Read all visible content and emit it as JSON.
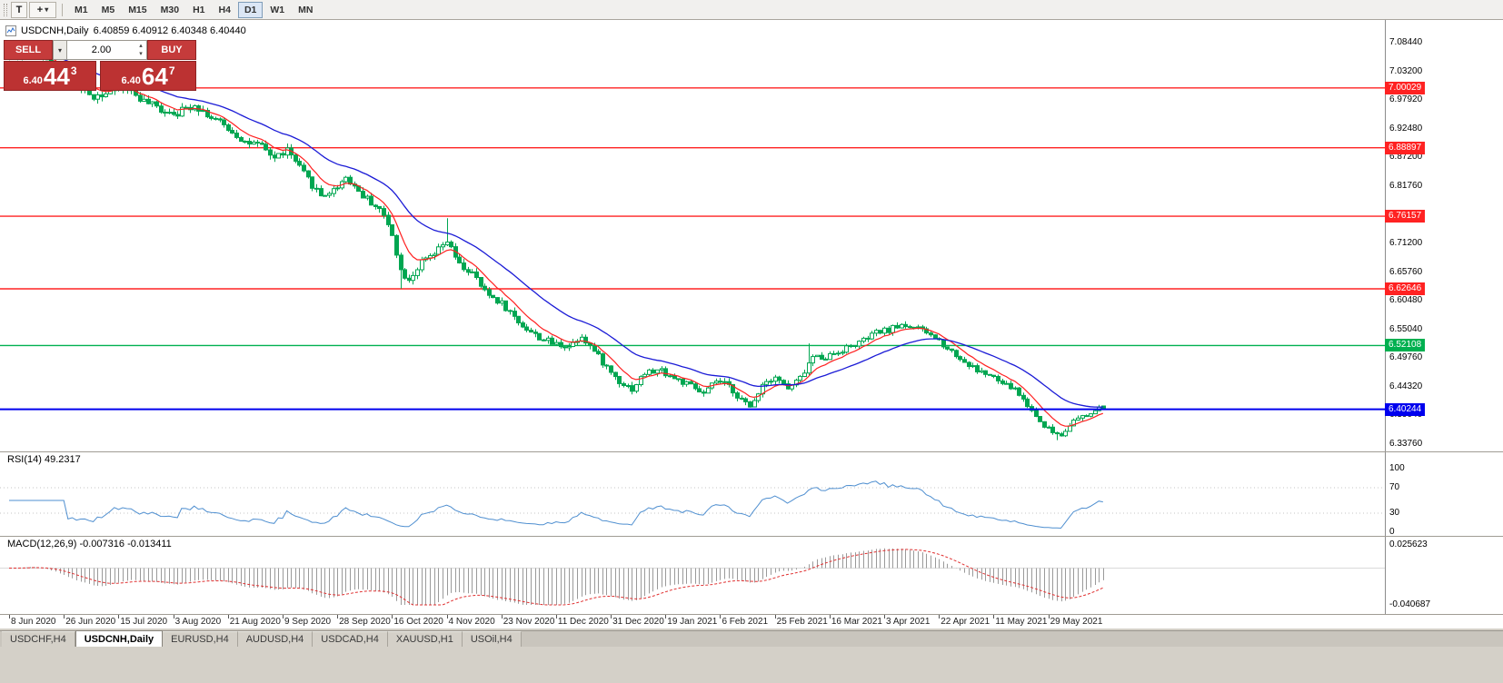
{
  "toolbar": {
    "grip_label": "T",
    "cursor_tool_glyph": "+",
    "timeframes": [
      "M1",
      "M5",
      "M15",
      "M30",
      "H1",
      "H4",
      "D1",
      "W1",
      "MN"
    ],
    "active_timeframe": "D1"
  },
  "chart_header": {
    "symbol": "USDCNH,Daily",
    "ohlc": "6.40859 6.40912 6.40348 6.40440"
  },
  "trade_panel": {
    "sell_label": "SELL",
    "buy_label": "BUY",
    "volume": "2.00",
    "sell_price_prefix": "6.40",
    "sell_price_big": "44",
    "sell_price_sup": "3",
    "buy_price_prefix": "6.40",
    "buy_price_big": "64",
    "buy_price_sup": "7"
  },
  "price_axis_labels": [
    "7.08440",
    "7.03200",
    "6.97920",
    "6.92480",
    "6.87200",
    "6.81760",
    "6.76480",
    "6.71200",
    "6.65760",
    "6.60480",
    "6.55040",
    "6.49760",
    "6.44320",
    "6.39040",
    "6.33760"
  ],
  "hlines": [
    {
      "label": "7.00029",
      "price": 7.00029,
      "color": "#ff2222",
      "width": 1.4
    },
    {
      "label": "6.88897",
      "price": 6.88897,
      "color": "#ff2222",
      "width": 1.4
    },
    {
      "label": "6.76157",
      "price": 6.76157,
      "color": "#ff2222",
      "width": 1.4
    },
    {
      "label": "6.62646",
      "price": 6.62646,
      "color": "#ff2222",
      "width": 1.4
    },
    {
      "label": "6.52108",
      "price": 6.52108,
      "color": "#00b050",
      "width": 1.4
    },
    {
      "label": "6.40244",
      "price": 6.40244,
      "color": "#0000ee",
      "width": 2
    }
  ],
  "rsi_panel": {
    "label": "RSI(14) 49.2317",
    "scale": [
      "100",
      "70",
      "30",
      "0"
    ],
    "scale_values": [
      100,
      70,
      30,
      0
    ],
    "levels": [
      70,
      30
    ],
    "line_color": "#4f8fd0"
  },
  "macd_panel": {
    "label": "MACD(12,26,9) -0.007316 -0.013411",
    "scale_top": "0.025623",
    "scale_bottom": "-0.040687",
    "hist_color": "#9a9a9a",
    "signal_color": "#e03030"
  },
  "date_axis": [
    "8 Jun 2020",
    "26 Jun 2020",
    "15 Jul 2020",
    "3 Aug 2020",
    "21 Aug 2020",
    "9 Sep 2020",
    "28 Sep 2020",
    "16 Oct 2020",
    "4 Nov 2020",
    "23 Nov 2020",
    "11 Dec 2020",
    "31 Dec 2020",
    "19 Jan 2021",
    "6 Feb 2021",
    "25 Feb 2021",
    "16 Mar 2021",
    "3 Apr 2021",
    "22 Apr 2021",
    "11 May 2021",
    "29 May 2021"
  ],
  "bottom_tabs": {
    "tabs": [
      "USDCHF,H4",
      "USDCNH,Daily",
      "EURUSD,H4",
      "AUDUSD,H4",
      "USDCAD,H4",
      "XAUUSD,H1",
      "USOil,H4"
    ],
    "active": "USDCNH,Daily"
  },
  "chart_data": {
    "type": "candlestick",
    "symbol": "USDCNH",
    "timeframe": "Daily",
    "bar_count": 261,
    "bars_per_label": 13,
    "y_axis_top": 7.0844,
    "y_axis_bottom": 6.3376,
    "last_bar": {
      "o": 6.40859,
      "h": 6.40912,
      "l": 6.40348,
      "c": 6.4044
    },
    "price_anchors": [
      [
        0,
        7.06
      ],
      [
        6,
        7.07
      ],
      [
        12,
        7.03
      ],
      [
        16,
        7.0
      ],
      [
        20,
        6.985
      ],
      [
        24,
        6.995
      ],
      [
        28,
        7.0
      ],
      [
        32,
        6.975
      ],
      [
        36,
        6.96
      ],
      [
        40,
        6.955
      ],
      [
        44,
        6.97
      ],
      [
        48,
        6.945
      ],
      [
        52,
        6.925
      ],
      [
        56,
        6.9
      ],
      [
        60,
        6.89
      ],
      [
        63,
        6.87
      ],
      [
        66,
        6.885
      ],
      [
        70,
        6.84
      ],
      [
        74,
        6.8
      ],
      [
        77,
        6.81
      ],
      [
        80,
        6.835
      ],
      [
        84,
        6.8
      ],
      [
        88,
        6.775
      ],
      [
        91,
        6.73
      ],
      [
        93,
        6.66
      ],
      [
        95,
        6.645
      ],
      [
        98,
        6.675
      ],
      [
        101,
        6.69
      ],
      [
        104,
        6.715
      ],
      [
        107,
        6.67
      ],
      [
        110,
        6.655
      ],
      [
        113,
        6.62
      ],
      [
        117,
        6.6
      ],
      [
        121,
        6.565
      ],
      [
        125,
        6.54
      ],
      [
        129,
        6.525
      ],
      [
        133,
        6.52
      ],
      [
        136,
        6.54
      ],
      [
        139,
        6.51
      ],
      [
        142,
        6.48
      ],
      [
        145,
        6.455
      ],
      [
        148,
        6.44
      ],
      [
        151,
        6.47
      ],
      [
        155,
        6.475
      ],
      [
        158,
        6.46
      ],
      [
        162,
        6.445
      ],
      [
        165,
        6.43
      ],
      [
        168,
        6.455
      ],
      [
        171,
        6.445
      ],
      [
        174,
        6.42
      ],
      [
        176,
        6.405
      ],
      [
        179,
        6.45
      ],
      [
        182,
        6.465
      ],
      [
        185,
        6.44
      ],
      [
        188,
        6.46
      ],
      [
        191,
        6.5
      ],
      [
        194,
        6.5
      ],
      [
        197,
        6.51
      ],
      [
        200,
        6.52
      ],
      [
        203,
        6.53
      ],
      [
        206,
        6.545
      ],
      [
        209,
        6.55
      ],
      [
        212,
        6.56
      ],
      [
        215,
        6.555
      ],
      [
        218,
        6.545
      ],
      [
        221,
        6.53
      ],
      [
        224,
        6.51
      ],
      [
        227,
        6.49
      ],
      [
        230,
        6.475
      ],
      [
        233,
        6.465
      ],
      [
        236,
        6.45
      ],
      [
        239,
        6.44
      ],
      [
        242,
        6.41
      ],
      [
        245,
        6.38
      ],
      [
        248,
        6.36
      ],
      [
        250,
        6.355
      ],
      [
        252,
        6.375
      ],
      [
        254,
        6.385
      ],
      [
        256,
        6.39
      ],
      [
        258,
        6.4
      ],
      [
        260,
        6.4044
      ]
    ],
    "spikes": [
      {
        "bar": 93,
        "low": 6.627
      },
      {
        "bar": 104,
        "high": 6.758
      },
      {
        "bar": 190,
        "high": 6.525
      },
      {
        "bar": 249,
        "low": 6.345
      }
    ],
    "overlays": [
      {
        "name": "ema-fast",
        "period": 8,
        "color": "#ff2020"
      },
      {
        "name": "ema-slow",
        "period": 26,
        "color": "#1b1bd6"
      }
    ],
    "indicators": [
      {
        "name": "RSI",
        "period": 14,
        "current": 49.2317
      },
      {
        "name": "MACD",
        "params": [
          12,
          26,
          9
        ],
        "current_main": -0.007316,
        "current_signal": -0.013411
      }
    ]
  },
  "colors": {
    "candle_up_fill": "#ffffff",
    "candle_down_fill": "#00a651",
    "candle_stroke": "#00a651",
    "hline_blue": "#0000ee",
    "panel_red": "#c53b3b"
  }
}
